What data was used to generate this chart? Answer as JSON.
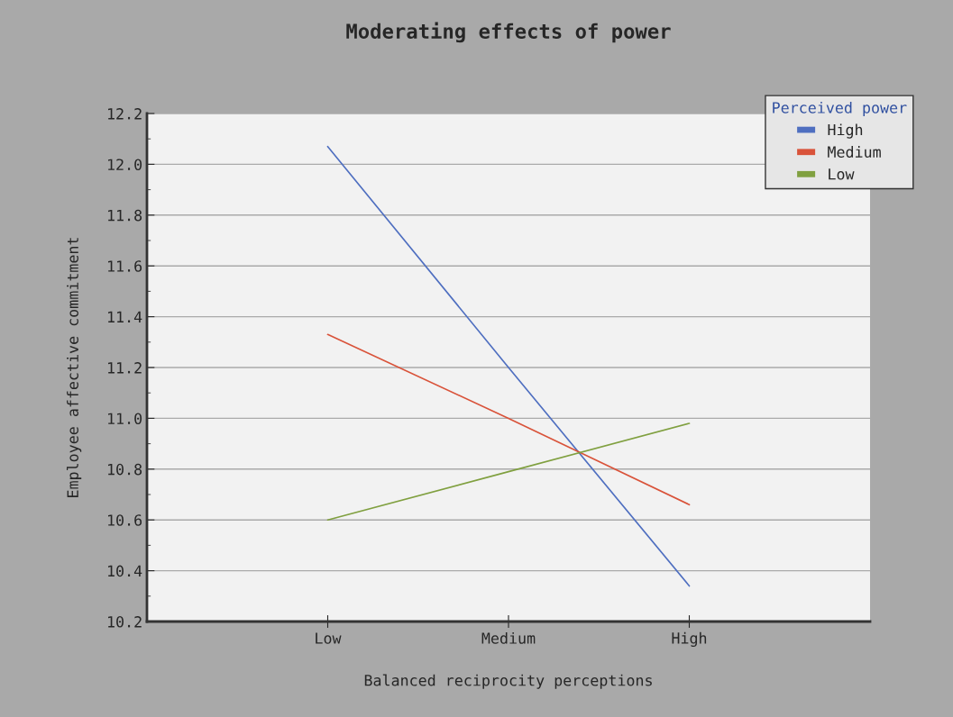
{
  "chart_data": {
    "type": "line",
    "title": "Moderating effects of power",
    "xlabel": "Balanced reciprocity perceptions",
    "ylabel": "Employee affective commitment",
    "legend_title": "Perceived power",
    "categories": [
      "Low",
      "Medium",
      "High"
    ],
    "series": [
      {
        "name": "High",
        "color": "#4f6fc0",
        "values": [
          12.07,
          11.2,
          10.34
        ]
      },
      {
        "name": "Medium",
        "color": "#d9533a",
        "values": [
          11.33,
          11.0,
          10.66
        ]
      },
      {
        "name": "Low",
        "color": "#80a040",
        "values": [
          10.6,
          10.79,
          10.98
        ]
      }
    ],
    "ylim": [
      10.2,
      12.2
    ],
    "yticks": [
      10.2,
      10.4,
      10.6,
      10.8,
      {
        "value": 11.0,
        "label": "11.0"
      },
      11.2,
      11.4,
      11.6,
      11.8,
      {
        "value": 12.0,
        "label": "12.0"
      },
      12.2
    ],
    "grid": "y",
    "legend": "top right",
    "marker": "none",
    "line_style": "solid"
  }
}
